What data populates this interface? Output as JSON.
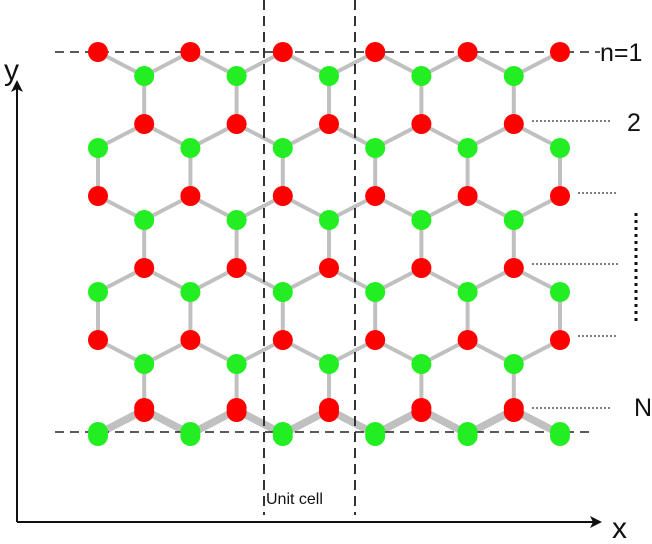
{
  "labels": {
    "y_axis": "y",
    "x_axis": "x",
    "row_first": "n=1",
    "row_second": "2",
    "row_last": "N",
    "unit_cell": "Unit cell"
  },
  "colors": {
    "red_atom": "#ff0000",
    "green_atom": "#22ee22",
    "bond": "#c0c0c0",
    "guide": "#222222"
  },
  "lattice": {
    "zigzag_columns": 6,
    "hex_rows": 3,
    "atom_types": [
      "red-atom",
      "green-atom"
    ]
  }
}
